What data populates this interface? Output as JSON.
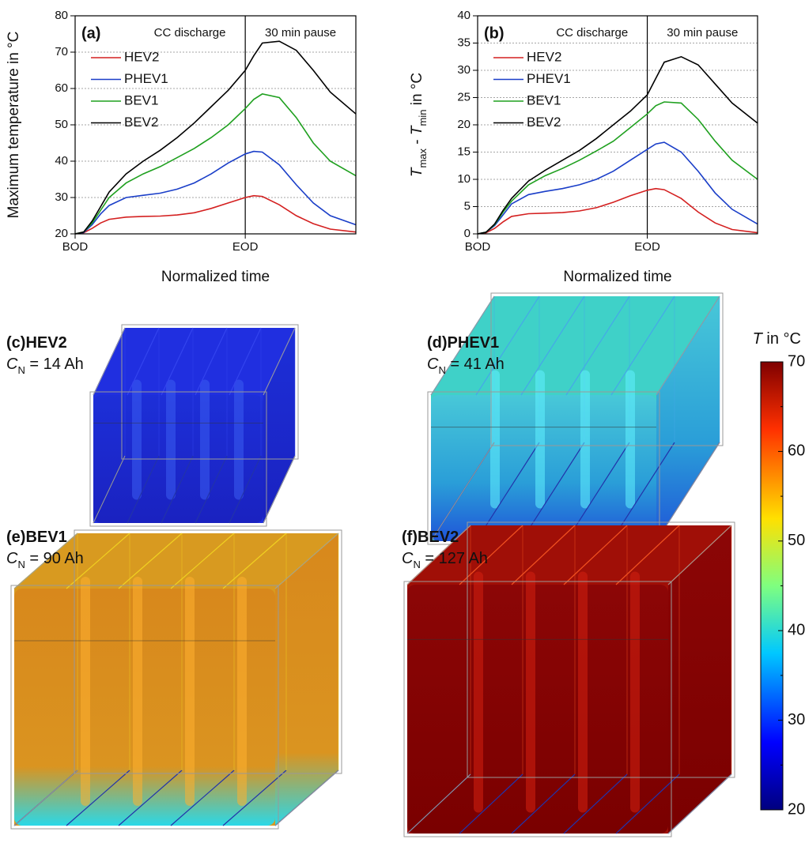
{
  "chart_data": [
    {
      "type": "line",
      "panel_label": "(a)",
      "ylabel": [
        "Maximum temperature in °C"
      ],
      "xlabel": "Normalized time",
      "annotations": [
        "CC discharge",
        "30 min pause"
      ],
      "legend": "upper left",
      "grid": true,
      "x": [
        0,
        0.05,
        0.1,
        0.15,
        0.2,
        0.3,
        0.4,
        0.5,
        0.6,
        0.7,
        0.8,
        0.9,
        1.0,
        1.05,
        1.1,
        1.2,
        1.3,
        1.4,
        1.5,
        1.65
      ],
      "xlim": [
        0,
        1.65
      ],
      "xticks": [
        {
          "value": 0,
          "label": "BOD"
        },
        {
          "value": 1,
          "label": "EOD"
        }
      ],
      "ylim": [
        20,
        80
      ],
      "yticks": [
        20,
        30,
        40,
        50,
        60,
        70,
        80
      ],
      "series": [
        {
          "name": "HEV2",
          "color": "#d42020",
          "values": [
            20,
            20.3,
            21.5,
            23,
            24,
            24.6,
            24.8,
            24.9,
            25.2,
            25.8,
            27,
            28.5,
            30,
            30.5,
            30.3,
            28,
            25,
            22.8,
            21.3,
            20.5
          ]
        },
        {
          "name": "PHEV1",
          "color": "#1a3ec8",
          "values": [
            20,
            20.4,
            22.5,
            25.5,
            27.8,
            30,
            30.6,
            31.2,
            32.3,
            34,
            36.5,
            39.5,
            42,
            42.7,
            42.5,
            39,
            33.5,
            28.5,
            25,
            22.5
          ]
        },
        {
          "name": "BEV1",
          "color": "#1fa01f",
          "values": [
            20,
            20.5,
            23,
            26.5,
            30,
            34,
            36.5,
            38.5,
            41,
            43.5,
            46.5,
            50,
            54.5,
            57,
            58.5,
            57.5,
            52,
            45,
            40,
            36
          ]
        },
        {
          "name": "BEV2",
          "color": "#000000",
          "values": [
            20,
            20.5,
            23.5,
            27.5,
            31.5,
            36.5,
            40,
            43,
            46.5,
            50.5,
            55,
            59.5,
            65,
            69,
            72.5,
            73,
            70.5,
            65,
            59,
            53
          ]
        }
      ]
    },
    {
      "type": "line",
      "panel_label": "(b)",
      "ylabel": [
        "T",
        "max",
        " - ",
        "T",
        "min",
        " in °C"
      ],
      "xlabel": "Normalized time",
      "annotations": [
        "CC discharge",
        "30 min pause"
      ],
      "legend": "upper left",
      "grid": true,
      "x": [
        0,
        0.05,
        0.1,
        0.15,
        0.2,
        0.3,
        0.4,
        0.5,
        0.6,
        0.7,
        0.8,
        0.9,
        1.0,
        1.05,
        1.1,
        1.2,
        1.3,
        1.4,
        1.5,
        1.65
      ],
      "xlim": [
        0,
        1.65
      ],
      "xticks": [
        {
          "value": 0,
          "label": "BOD"
        },
        {
          "value": 1,
          "label": "EOD"
        }
      ],
      "ylim": [
        0,
        40
      ],
      "yticks": [
        0,
        5,
        10,
        15,
        20,
        25,
        30,
        35,
        40
      ],
      "series": [
        {
          "name": "HEV2",
          "color": "#d42020",
          "values": [
            0,
            0.2,
            1,
            2.2,
            3.2,
            3.7,
            3.8,
            3.9,
            4.2,
            4.8,
            5.8,
            7,
            8,
            8.3,
            8.1,
            6.5,
            4,
            2,
            0.8,
            0.2
          ]
        },
        {
          "name": "PHEV1",
          "color": "#1a3ec8",
          "values": [
            0,
            0.3,
            1.5,
            3.5,
            5.5,
            7.2,
            7.8,
            8.3,
            9,
            10,
            11.5,
            13.5,
            15.5,
            16.5,
            16.8,
            15,
            11.5,
            7.5,
            4.5,
            1.8
          ]
        },
        {
          "name": "BEV1",
          "color": "#1fa01f",
          "values": [
            0,
            0.3,
            1.7,
            4,
            6,
            9,
            10.7,
            12,
            13.5,
            15.2,
            17,
            19.5,
            22,
            23.5,
            24.2,
            24,
            21,
            17,
            13.5,
            10
          ]
        },
        {
          "name": "BEV2",
          "color": "#000000",
          "values": [
            0,
            0.3,
            1.8,
            4.3,
            6.5,
            9.7,
            11.7,
            13.5,
            15.3,
            17.5,
            20,
            22.5,
            25.5,
            28.5,
            31.5,
            32.5,
            31,
            27.5,
            24,
            20.3
          ]
        }
      ]
    },
    {
      "type": "colorbar",
      "title": [
        "T",
        " in °C"
      ],
      "ylim": [
        20,
        70
      ],
      "yticks": [
        20,
        30,
        40,
        50,
        60,
        70
      ]
    }
  ],
  "panels": [
    {
      "label": "(c)",
      "name": "HEV2",
      "capacity": [
        "C",
        "N",
        " = 14 Ah"
      ]
    },
    {
      "label": "(d)",
      "name": "PHEV1",
      "capacity": [
        "C",
        "N",
        " = 41 Ah"
      ]
    },
    {
      "label": "(e)",
      "name": "BEV1",
      "capacity": [
        "C",
        "N",
        " = 90 Ah"
      ]
    },
    {
      "label": "(f)",
      "name": "BEV2",
      "capacity": [
        "C",
        "N",
        " = 127 Ah"
      ]
    }
  ]
}
